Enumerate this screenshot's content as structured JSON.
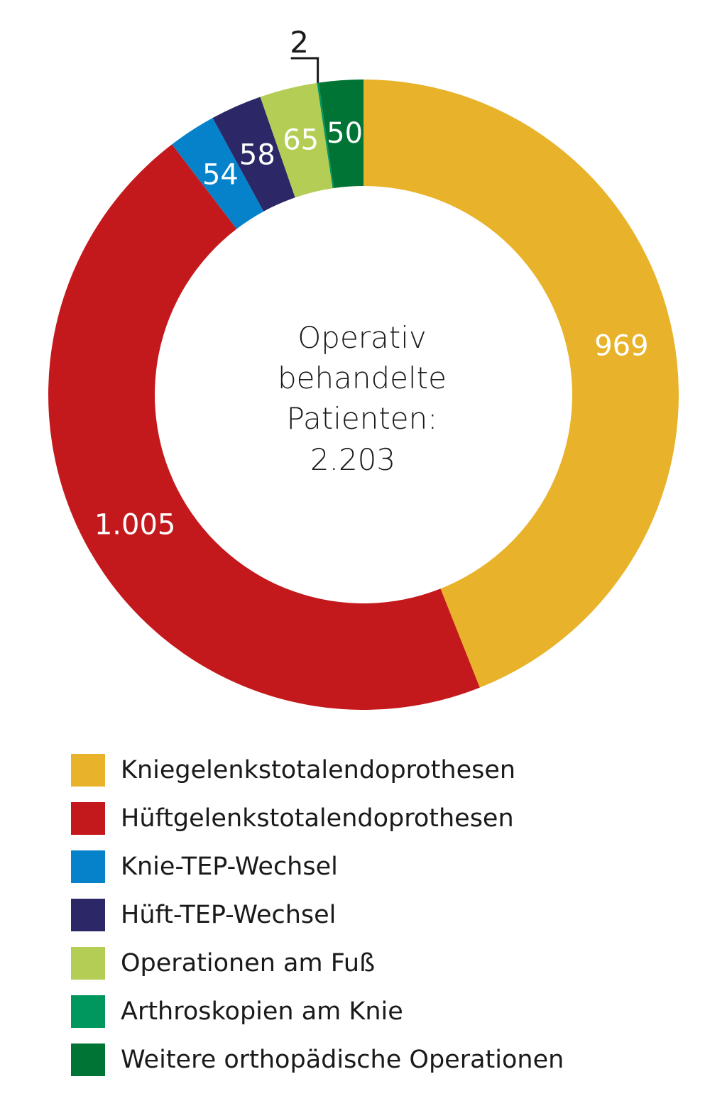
{
  "chart_data": {
    "type": "pie",
    "variant": "donut",
    "center_text": [
      "Operativ",
      "behandelte",
      "Patienten:",
      "2.203"
    ],
    "total": 2203,
    "slices": [
      {
        "name": "Kniegelenkstotalendoprothesen",
        "value": 969,
        "label": "969",
        "color": "#E8B32A"
      },
      {
        "name": "Hüftgelenkstotalendoprothesen",
        "value": 1005,
        "label": "1.005",
        "color": "#C4191C"
      },
      {
        "name": "Knie-TEP-Wechsel",
        "value": 54,
        "label": "54",
        "color": "#0582CA"
      },
      {
        "name": "Hüft-TEP-Wechsel",
        "value": 58,
        "label": "58",
        "color": "#2C2766"
      },
      {
        "name": "Operationen am Fuß",
        "value": 65,
        "label": "65",
        "color": "#B3CD55"
      },
      {
        "name": "Arthroskopien am Knie",
        "value": 2,
        "label": "2",
        "color": "#00975F"
      },
      {
        "name": "Weitere orthopädische Operationen",
        "value": 50,
        "label": "50",
        "color": "#007435"
      }
    ],
    "legend_placement": "bottom"
  }
}
